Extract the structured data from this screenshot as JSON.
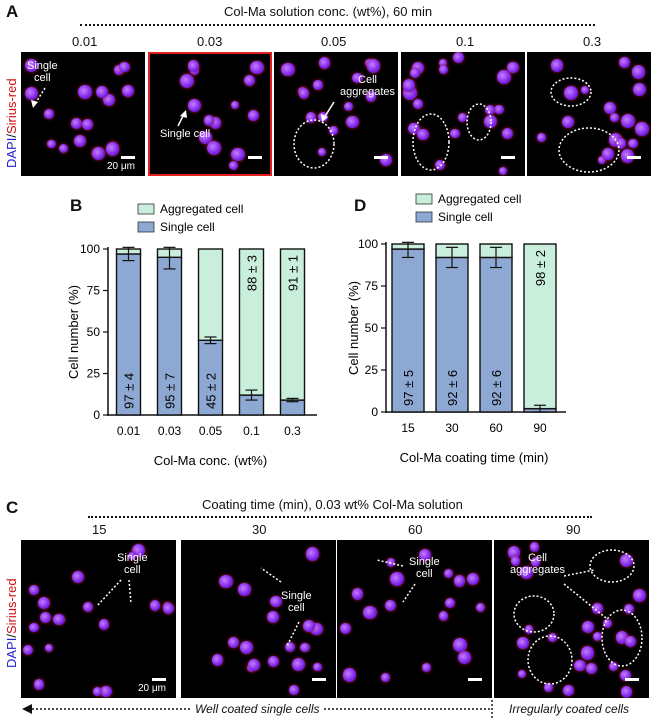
{
  "panel_a": {
    "label": "A",
    "header": "Col-Ma solution conc. (wt%), 60 min",
    "concentrations": [
      "0.01",
      "0.03",
      "0.05",
      "0.1",
      "0.3"
    ],
    "stain": {
      "dapi": "DAPI",
      "sep": "/",
      "sirius": "Sirius-red"
    },
    "scale": "20 μm",
    "ann_single1": "Single\ncell",
    "ann_single2": "Single cell",
    "ann_agg": "Cell\naggregates"
  },
  "panel_c": {
    "label": "C",
    "header": "Coating time (min), 0.03 wt% Col-Ma solution",
    "times": [
      "15",
      "30",
      "60",
      "90"
    ],
    "stain": {
      "dapi": "DAPI",
      "sep": "/",
      "sirius": "Sirius-red"
    },
    "scale": "20 μm",
    "ann_single1": "Single\ncell",
    "ann_single2": "Single\ncell",
    "ann_single3": "Single\ncell",
    "ann_agg": "Cell\naggregates",
    "footer_left": "Well coated single cells",
    "footer_right": "Irregularly coated cells"
  },
  "colors": {
    "single": "#8ea8d4",
    "aggregated": "#c9eedb",
    "dapi": "#7a22e8",
    "sirius": "#b8182e",
    "highlight": "#e02020"
  },
  "chart_data": [
    {
      "panel": "B",
      "type": "bar",
      "stacked": true,
      "xlabel": "Col-Ma conc. (wt%)",
      "ylabel": "Cell number (%)",
      "ylim": [
        0,
        100
      ],
      "yticks": [
        0,
        25,
        50,
        75,
        100
      ],
      "categories": [
        "0.01",
        "0.03",
        "0.05",
        "0.1",
        "0.3"
      ],
      "legend": [
        "Aggregated cell",
        "Single cell"
      ],
      "legend_position": "top",
      "series": [
        {
          "name": "Single cell",
          "values": [
            97,
            95,
            45,
            12,
            9
          ],
          "errors": [
            4,
            7,
            2,
            3,
            1
          ]
        },
        {
          "name": "Aggregated cell",
          "values": [
            3,
            5,
            55,
            88,
            91
          ]
        }
      ],
      "labels": [
        "97 ± 4",
        "95 ± 7",
        "45 ± 2",
        "88 ± 3",
        "91 ± 1"
      ],
      "label_series": [
        "Single cell",
        "Single cell",
        "Single cell",
        "Aggregated cell",
        "Aggregated cell"
      ]
    },
    {
      "panel": "D",
      "type": "bar",
      "stacked": true,
      "xlabel": "Col-Ma coating time (min)",
      "ylabel": "Cell number (%)",
      "ylim": [
        0,
        100
      ],
      "yticks": [
        0,
        25,
        50,
        75,
        100
      ],
      "categories": [
        "15",
        "30",
        "60",
        "90"
      ],
      "legend": [
        "Aggregated cell",
        "Single cell"
      ],
      "legend_position": "top",
      "series": [
        {
          "name": "Single cell",
          "values": [
            97,
            92,
            92,
            2
          ],
          "errors": [
            5,
            6,
            6,
            2
          ]
        },
        {
          "name": "Aggregated cell",
          "values": [
            3,
            8,
            8,
            98
          ]
        }
      ],
      "labels": [
        "97 ± 5",
        "92 ± 6",
        "92 ± 6",
        "98 ± 2"
      ],
      "label_series": [
        "Single cell",
        "Single cell",
        "Single cell",
        "Aggregated cell"
      ]
    }
  ]
}
